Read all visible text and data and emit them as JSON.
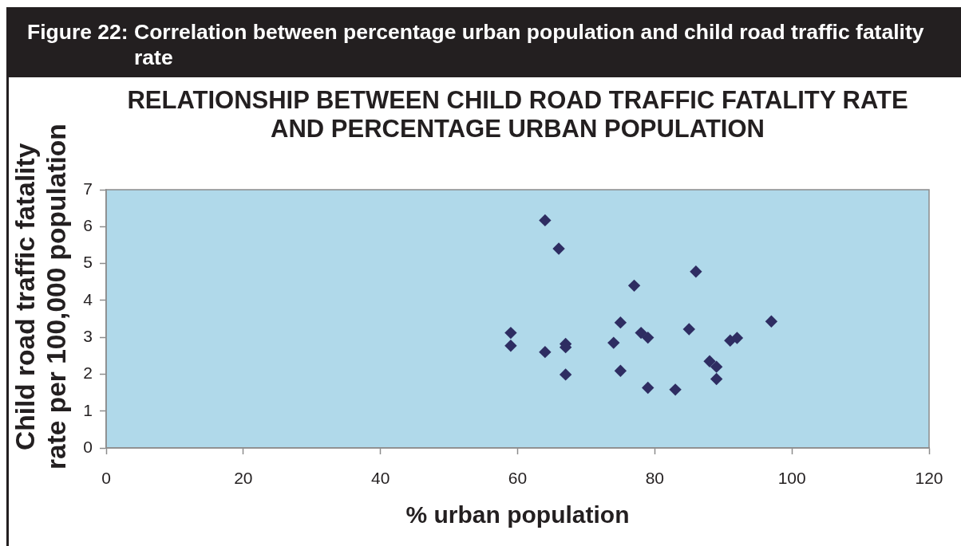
{
  "chart_data": {
    "type": "scatter",
    "title": "Figure 22: Correlation between percentage urban population and child road traffic fatality rate",
    "subtitle": "RELATIONSHIP BETWEEN CHILD ROAD TRAFFIC FATALITY RATE AND PERCENTAGE URBAN POPULATION",
    "xlabel": "% urban population",
    "ylabel": "Child road traffic fatality rate per 100,000 population",
    "x": [
      59,
      59,
      64,
      64,
      66,
      67,
      67,
      67,
      74,
      75,
      75,
      77,
      78,
      79,
      79,
      83,
      85,
      86,
      88,
      89,
      89,
      91,
      92,
      97
    ],
    "series": [
      {
        "color": "#2e2d62",
        "values": [
          3.12,
          2.77,
          6.17,
          2.6,
          5.4,
          2.82,
          2.73,
          1.99,
          2.85,
          3.4,
          2.09,
          4.4,
          3.12,
          2.99,
          1.63,
          1.58,
          3.22,
          4.78,
          2.35,
          2.2,
          1.87,
          2.91,
          2.98,
          3.43
        ]
      }
    ],
    "xlim": [
      0,
      120
    ],
    "xticks": [
      0,
      20,
      40,
      60,
      80,
      100,
      120
    ],
    "ylim": [
      0,
      7
    ],
    "yticks": [
      0,
      1,
      2,
      3,
      4,
      5,
      6,
      7
    ],
    "marker": "diamond"
  }
}
